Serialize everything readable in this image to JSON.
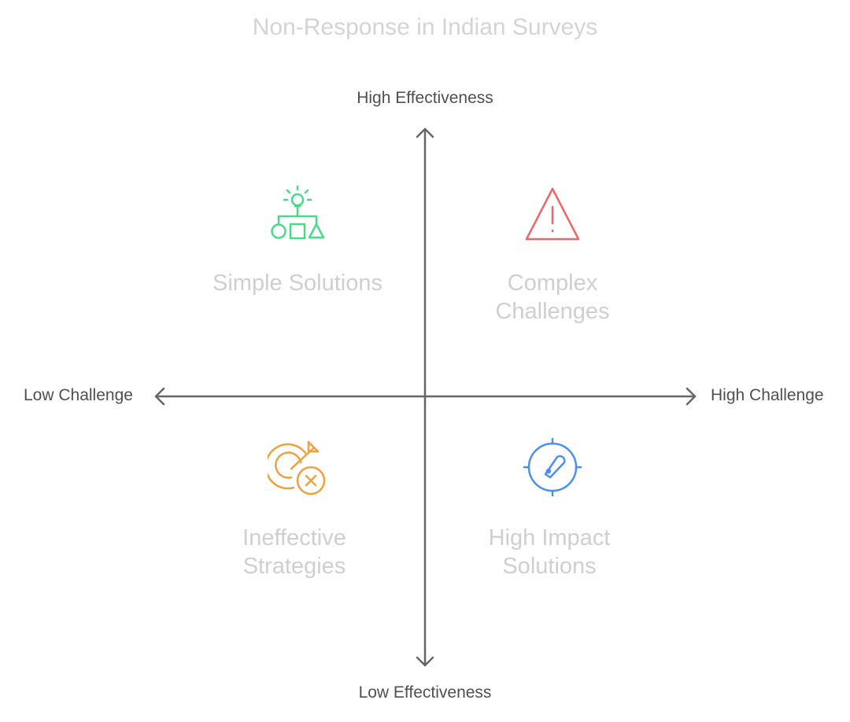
{
  "title": "Non-Response in Indian Surveys",
  "axes": {
    "top": "High Effectiveness",
    "bottom": "Low Effectiveness",
    "left": "Low Challenge",
    "right": "High Challenge"
  },
  "quadrants": {
    "top_left": {
      "lines": [
        "Simple Solutions"
      ],
      "icon": "lightbulb-shapes-icon",
      "color": "#4ad98a"
    },
    "top_right": {
      "lines": [
        "Complex",
        "Challenges"
      ],
      "icon": "warning-triangle-icon",
      "color": "#f06565"
    },
    "bottom_left": {
      "lines": [
        "Ineffective",
        "Strategies"
      ],
      "icon": "target-miss-icon",
      "color": "#f2a03d"
    },
    "bottom_right": {
      "lines": [
        "High Impact",
        "Solutions"
      ],
      "icon": "crosshair-gauge-icon",
      "color": "#4a90f0"
    }
  },
  "colors": {
    "axis": "#666666",
    "title": "#d4d4d4",
    "quadrant_text": "#cfcfcf"
  }
}
